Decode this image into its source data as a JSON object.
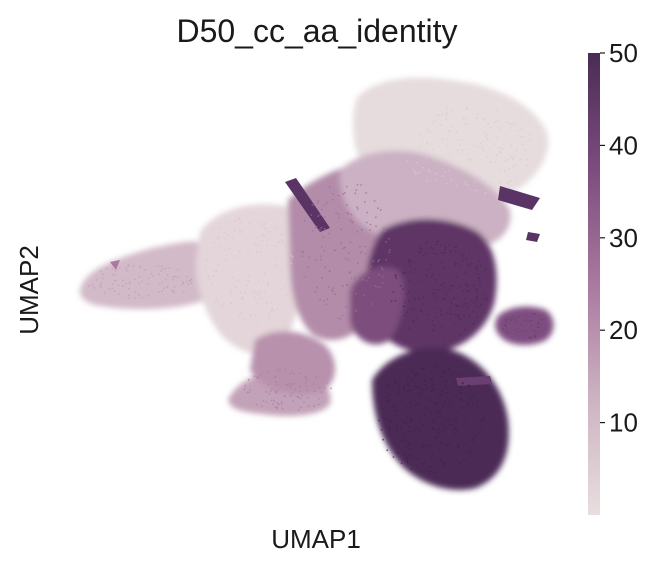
{
  "chart_data": {
    "type": "scatter",
    "title": "D50_cc_aa_identity",
    "xlabel": "UMAP1",
    "ylabel": "UMAP2",
    "grid": false,
    "legend": "colorbar-right",
    "colorbar": {
      "ticks": [
        10,
        20,
        30,
        40,
        50
      ],
      "tick_labels": [
        "10",
        "20",
        "30",
        "40",
        "50"
      ],
      "range": [
        0,
        50
      ],
      "colors": [
        "#e8dede",
        "#cdb3c2",
        "#a9799f",
        "#7c4c7e",
        "#4a2c55"
      ]
    },
    "regions": [
      {
        "label": "top-right lobe",
        "value": 5
      },
      {
        "label": "left arm",
        "value": 18
      },
      {
        "label": "center-left light",
        "value": 10
      },
      {
        "label": "center band",
        "value": 22
      },
      {
        "label": "center-right",
        "value": 40
      },
      {
        "label": "right small cluster",
        "value": 35
      },
      {
        "label": "bottom-right lobe",
        "value": 48
      },
      {
        "label": "lower-left",
        "value": 18
      }
    ]
  }
}
